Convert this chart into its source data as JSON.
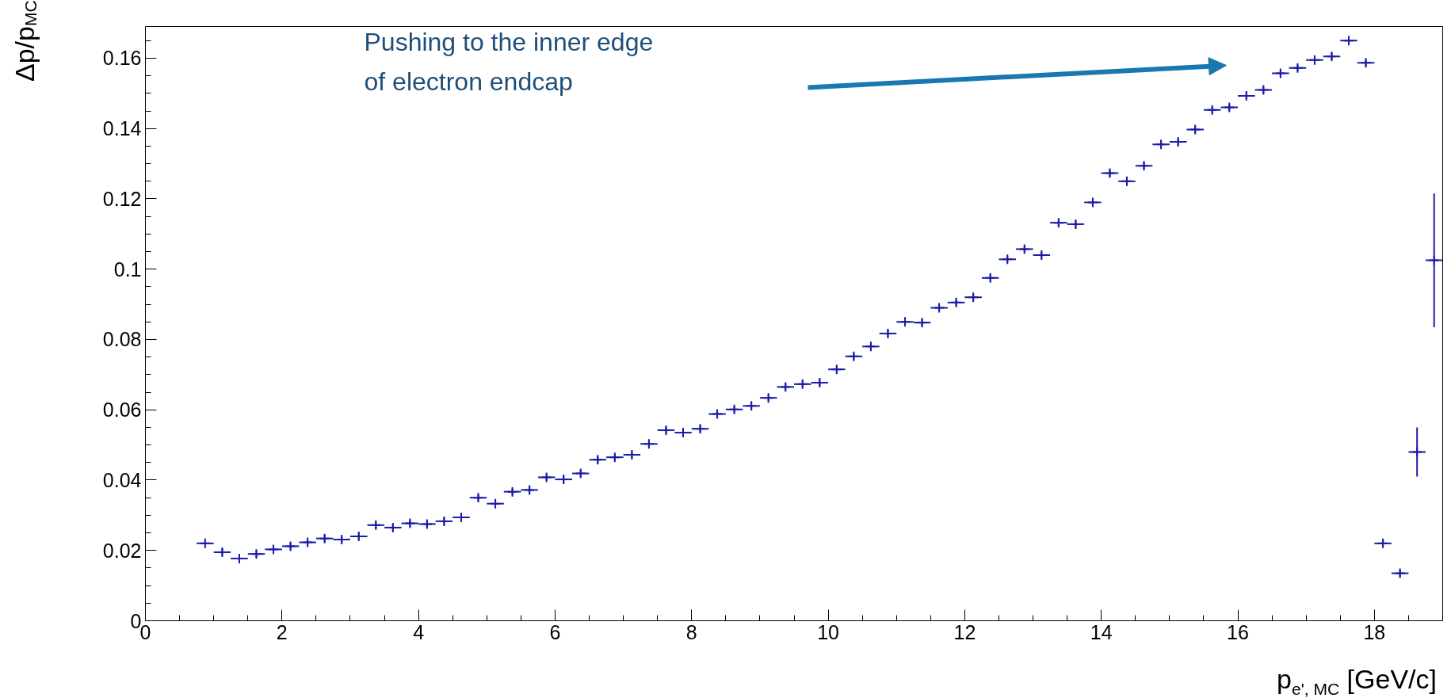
{
  "chart_data": {
    "type": "scatter",
    "xlabel": "p$_{e', MC}$ [GeV/c]",
    "ylabel": "Δp/p$_{MC}$",
    "x": [
      0.875,
      1.125,
      1.375,
      1.625,
      1.875,
      2.125,
      2.375,
      2.625,
      2.875,
      3.125,
      3.375,
      3.625,
      3.875,
      4.125,
      4.375,
      4.625,
      4.875,
      5.125,
      5.375,
      5.625,
      5.875,
      6.125,
      6.375,
      6.625,
      6.875,
      7.125,
      7.375,
      7.625,
      7.875,
      8.125,
      8.375,
      8.625,
      8.875,
      9.125,
      9.375,
      9.625,
      9.875,
      10.125,
      10.375,
      10.625,
      10.875,
      11.125,
      11.375,
      11.625,
      11.875,
      12.125,
      12.375,
      12.625,
      12.875,
      13.125,
      13.375,
      13.625,
      13.875,
      14.125,
      14.375,
      14.625,
      14.875,
      15.125,
      15.375,
      15.625,
      15.875,
      16.125,
      16.375,
      16.625,
      16.875,
      17.125,
      17.375,
      17.625,
      17.875,
      18.125,
      18.375,
      18.625,
      18.875
    ],
    "series": [
      {
        "color": "#1c1ca8",
        "values": [
          0.022,
          0.0195,
          0.0177,
          0.019,
          0.0203,
          0.0212,
          0.0223,
          0.0234,
          0.0231,
          0.024,
          0.0272,
          0.0265,
          0.0277,
          0.0275,
          0.0283,
          0.0294,
          0.035,
          0.0333,
          0.0367,
          0.0372,
          0.0408,
          0.0402,
          0.0419,
          0.0458,
          0.0465,
          0.0472,
          0.0503,
          0.0542,
          0.0535,
          0.0546,
          0.0588,
          0.0601,
          0.0611,
          0.0634,
          0.0665,
          0.0673,
          0.0677,
          0.0715,
          0.0752,
          0.078,
          0.0817,
          0.085,
          0.0848,
          0.089,
          0.0905,
          0.092,
          0.0975,
          0.1028,
          0.1057,
          0.104,
          0.1132,
          0.1128,
          0.119,
          0.1273,
          0.125,
          0.1294,
          0.1355,
          0.1362,
          0.1397,
          0.1453,
          0.146,
          0.1493,
          0.151,
          0.1557,
          0.1572,
          0.1595,
          0.1605,
          0.165,
          0.1587,
          0.022,
          0.0135,
          0.048,
          0.1025
        ],
        "errors": [
          null,
          0.001,
          0.001,
          0.001,
          0.001,
          0.001,
          0.001,
          0.001,
          0.001,
          0.001,
          0.001,
          0.001,
          0.001,
          0.001,
          0.001,
          0.001,
          0.001,
          0.001,
          0.001,
          0.001,
          0.001,
          0.001,
          0.001,
          0.001,
          0.001,
          0.001,
          0.001,
          0.001,
          0.001,
          0.001,
          0.001,
          0.001,
          0.001,
          0.001,
          0.001,
          0.001,
          0.001,
          0.001,
          0.001,
          0.001,
          0.001,
          0.001,
          0.001,
          0.001,
          0.001,
          0.001,
          0.001,
          0.001,
          0.001,
          0.001,
          0.001,
          0.001,
          0.001,
          0.001,
          0.001,
          0.001,
          0.001,
          0.001,
          0.001,
          0.001,
          0.001,
          0.001,
          0.001,
          0.001,
          0.001,
          0.001,
          0.001,
          0.001,
          0.001,
          0.001,
          0.001,
          0.007,
          0.019
        ],
        "xerrors": [
          0.125,
          0.125,
          0.125,
          0.125,
          0.125,
          0.125,
          0.125,
          0.125,
          0.125,
          0.125,
          0.125,
          0.125,
          0.125,
          0.125,
          0.125,
          0.125,
          0.125,
          0.125,
          0.125,
          0.125,
          0.125,
          0.125,
          0.125,
          0.125,
          0.125,
          0.125,
          0.125,
          0.125,
          0.125,
          0.125,
          0.125,
          0.125,
          0.125,
          0.125,
          0.125,
          0.125,
          0.125,
          0.125,
          0.125,
          0.125,
          0.125,
          0.125,
          0.125,
          0.125,
          0.125,
          0.125,
          0.125,
          0.125,
          0.125,
          0.125,
          0.125,
          0.125,
          0.125,
          0.125,
          0.125,
          0.125,
          0.125,
          0.125,
          0.125,
          0.125,
          0.125,
          0.125,
          0.125,
          0.125,
          0.125,
          0.125,
          0.125,
          0.125,
          0.125,
          0.125,
          0.125,
          0.125,
          0.125
        ]
      }
    ],
    "marker": "cross",
    "xlim": [
      0,
      19
    ],
    "ylim": [
      0,
      0.169
    ],
    "xticks": [
      0,
      2,
      4,
      6,
      8,
      10,
      12,
      14,
      16,
      18
    ],
    "yticks": [
      0,
      0.02,
      0.04,
      0.06,
      0.08,
      0.1,
      0.12,
      0.14,
      0.16
    ],
    "annotations": [
      "Pushing to the inner edge\nof electron endcap"
    ]
  }
}
